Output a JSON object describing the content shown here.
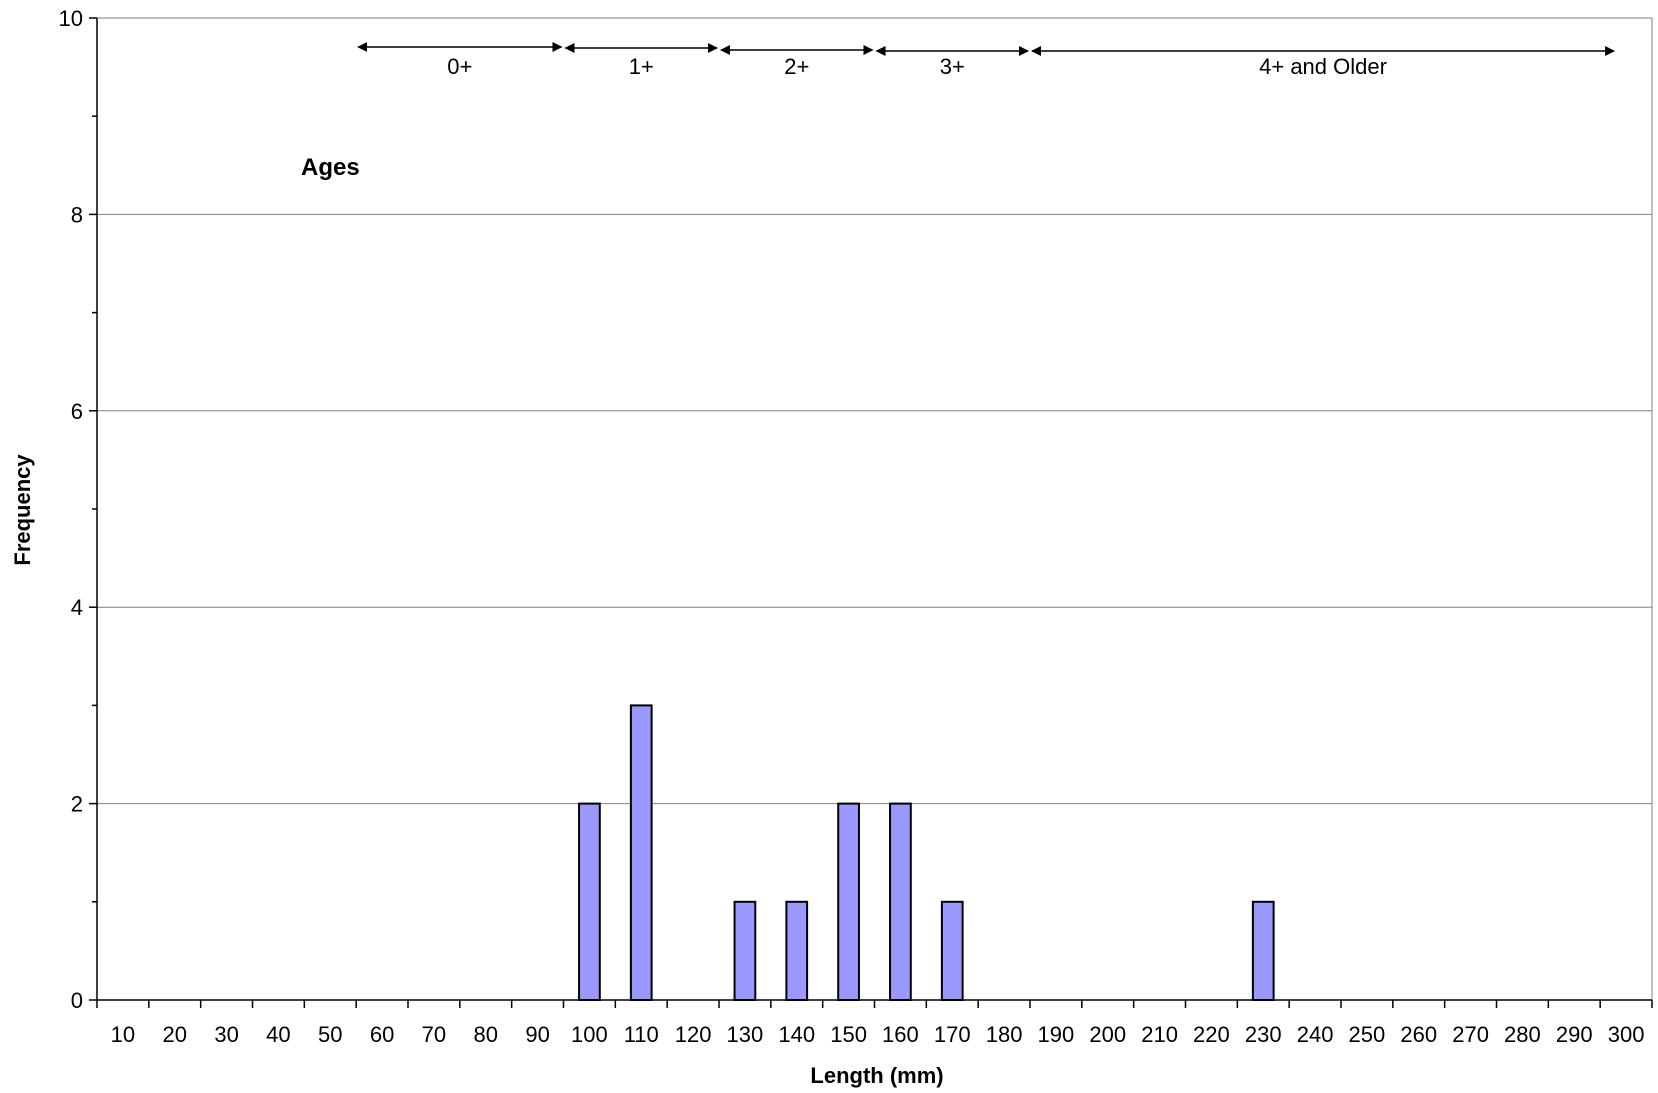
{
  "chart_data": {
    "type": "bar",
    "xlabel": "Length (mm)",
    "ylabel": "Frequency",
    "ylim": [
      0,
      10
    ],
    "yticks": [
      "0",
      "2",
      "4",
      "6",
      "8",
      "10"
    ],
    "grid": "horizontal major lines",
    "categories": [
      "10",
      "20",
      "30",
      "40",
      "50",
      "60",
      "70",
      "80",
      "90",
      "100",
      "110",
      "120",
      "130",
      "140",
      "150",
      "160",
      "170",
      "180",
      "190",
      "200",
      "210",
      "220",
      "230",
      "240",
      "250",
      "260",
      "270",
      "280",
      "290",
      "300"
    ],
    "values": [
      0,
      0,
      0,
      0,
      0,
      0,
      0,
      0,
      0,
      2,
      3,
      0,
      1,
      1,
      2,
      2,
      1,
      0,
      0,
      0,
      0,
      0,
      1,
      0,
      0,
      0,
      0,
      0,
      0,
      0
    ],
    "bar_color": "#9999ff",
    "annotations": {
      "ages_title": "Ages",
      "age_classes": [
        {
          "label": "0+",
          "from": 50,
          "to": 90
        },
        {
          "label": "1+",
          "from": 90,
          "to": 120
        },
        {
          "label": "2+",
          "from": 120,
          "to": 150
        },
        {
          "label": "3+",
          "from": 150,
          "to": 180
        },
        {
          "label": "4+ and Older",
          "from": 180,
          "to": 300
        }
      ]
    }
  }
}
